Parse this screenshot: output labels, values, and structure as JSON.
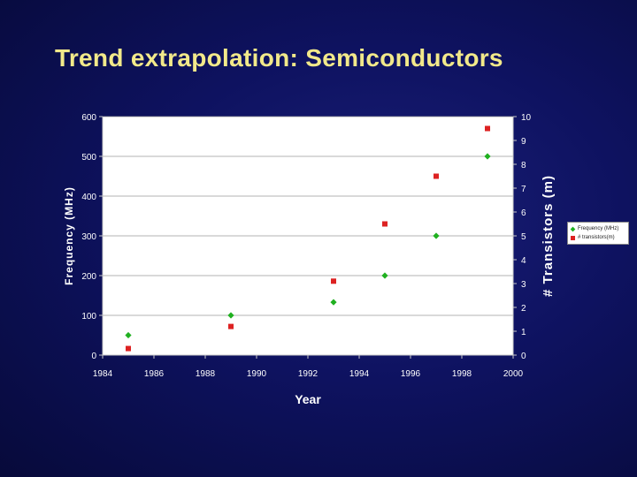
{
  "slide": {
    "title": "Trend extrapolation: Semiconductors"
  },
  "chart_data": {
    "type": "scatter",
    "xlabel": "Year",
    "ylabel": "Frequency (MHz)",
    "y2label": "# Transistors (m)",
    "xlim": [
      1984,
      2000
    ],
    "ylim": [
      0,
      600
    ],
    "y2lim": [
      0,
      10
    ],
    "x_ticks": [
      "1984",
      "1986",
      "1988",
      "1990",
      "1992",
      "1994",
      "1996",
      "1998",
      "2000"
    ],
    "y_ticks": [
      "0",
      "100",
      "200",
      "300",
      "400",
      "500",
      "600"
    ],
    "y2_ticks": [
      "0",
      "1",
      "2",
      "3",
      "4",
      "5",
      "6",
      "7",
      "8",
      "9",
      "10"
    ],
    "grid": true,
    "legend": "right",
    "series": [
      {
        "name": "Frequency (MHz)",
        "axis": "left",
        "marker": "diamond",
        "color": "#20b020",
        "x": [
          1985,
          1989,
          1993,
          1995,
          1997,
          1999
        ],
        "y": [
          50,
          100,
          133,
          200,
          300,
          500
        ]
      },
      {
        "name": "# transistors(m)",
        "axis": "right",
        "marker": "square",
        "color": "#dd2222",
        "x": [
          1985,
          1989,
          1993,
          1995,
          1997,
          1999
        ],
        "y": [
          0.275,
          1.2,
          3.1,
          5.5,
          7.5,
          9.5
        ]
      }
    ]
  }
}
